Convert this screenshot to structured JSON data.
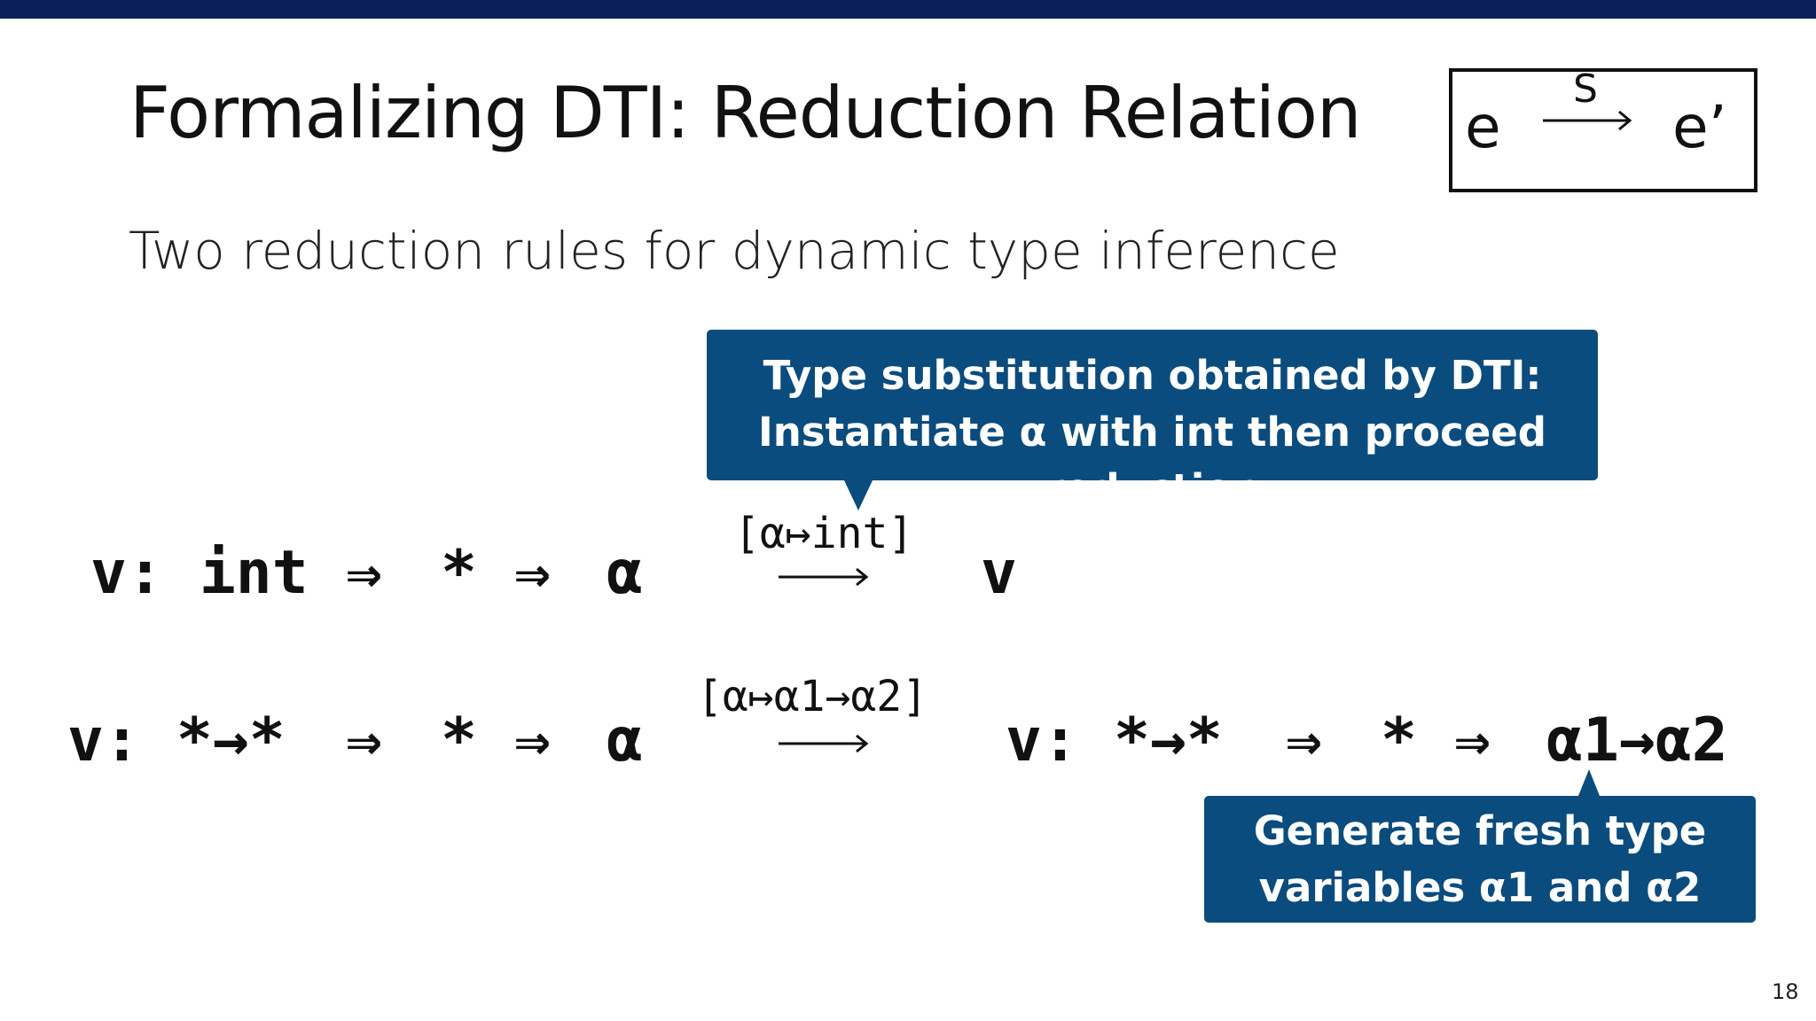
{
  "slide": {
    "title": "Formalizing DTI: Reduction Relation",
    "subtitle": "Two reduction rules for dynamic type inference",
    "page_number": "18",
    "accent_color": "#0b4c7e",
    "topbar_color": "#0c1f5a"
  },
  "relation_box": {
    "lhs": "e",
    "label": "S",
    "rhs": "e’"
  },
  "callout_top": {
    "line1": "Type substitution obtained by DTI:",
    "line2": "Instantiate α with int then proceed reduction"
  },
  "callout_bottom": {
    "line1": "Generate fresh type",
    "line2": "variables α1 and α2"
  },
  "rule1": {
    "v_type": "v: int",
    "cast1": "⇒",
    "star": "*",
    "cast2": "⇒",
    "alpha": "α",
    "subst": "[α↦int]",
    "result": "v"
  },
  "rule2": {
    "v_type": "v: *→*",
    "cast1": "⇒",
    "star": "*",
    "cast2": "⇒",
    "alpha": "α",
    "subst": "[α↦α1→α2]",
    "result_v": "v:",
    "result_type": "*→*",
    "result_cast1": "⇒",
    "result_star": "*",
    "result_cast2": "⇒",
    "result_target": "α1→α2"
  }
}
